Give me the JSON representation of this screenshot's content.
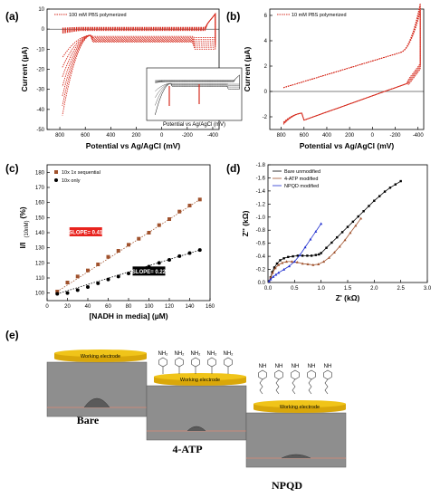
{
  "panel_labels": [
    "(a)",
    "(b)",
    "(c)",
    "(d)",
    "(e)"
  ],
  "chart_data": [
    {
      "id": "a",
      "type": "line",
      "xlabel": "Potential vs Ag/AgCl (mV)",
      "ylabel": "Current (µA)",
      "xlim": [
        900,
        -450
      ],
      "ylim": [
        -50,
        10
      ],
      "x_ticks": [
        800,
        600,
        400,
        200,
        0,
        -200,
        -400
      ],
      "y_ticks": [
        10,
        0,
        -10,
        -20,
        -30,
        -40,
        -50
      ],
      "legend": "100 mM PBS polymerized",
      "color": "#d62d20",
      "inset_xlabel": "Potential vs Ag/AgCl (mV)",
      "cycles": [
        {
          "scale": 1.0
        },
        {
          "scale": 0.88
        },
        {
          "scale": 0.76
        },
        {
          "scale": 0.64
        },
        {
          "scale": 0.52
        },
        {
          "scale": 0.4
        },
        {
          "scale": 0.28
        }
      ]
    },
    {
      "id": "b",
      "type": "line",
      "xlabel": "Potential vs Ag/AgCl (mV)",
      "ylabel": "Current (µA)",
      "xlim": [
        900,
        -450
      ],
      "ylim": [
        -3,
        6.5
      ],
      "x_ticks": [
        800,
        600,
        400,
        200,
        0,
        -200,
        -400
      ],
      "y_ticks": [
        6,
        4,
        2,
        0,
        -2
      ],
      "legend": "10 mM PBS polymerized",
      "color": "#d62d20",
      "cycles": [
        {
          "scale": 1.0
        },
        {
          "scale": 0.95
        },
        {
          "scale": 0.9
        },
        {
          "scale": 0.85
        },
        {
          "scale": 0.8
        }
      ]
    },
    {
      "id": "c",
      "type": "scatter",
      "xlabel": "[NADH in media] (µM)",
      "ylabel": "I/I(10nM) (%)",
      "ylabel_main": "I/I",
      "ylabel_sub": "(10nM)",
      "ylabel_unit": "(%)",
      "xlim": [
        0,
        160
      ],
      "ylim": [
        95,
        185
      ],
      "x_ticks": [
        0,
        20,
        40,
        60,
        80,
        100,
        120,
        140,
        160
      ],
      "y_ticks": [
        100,
        110,
        120,
        130,
        140,
        150,
        160,
        170,
        180
      ],
      "series": [
        {
          "name": "10x 1x sequential",
          "color": "#a0522d",
          "marker": "square",
          "x": [
            10,
            20,
            30,
            40,
            50,
            60,
            70,
            80,
            90,
            100,
            110,
            120,
            130,
            140,
            150
          ],
          "y": [
            101,
            107,
            111,
            115,
            119,
            124,
            128,
            132,
            136,
            140,
            145,
            149,
            154,
            158,
            162
          ]
        },
        {
          "name": "10x only",
          "color": "#000000",
          "marker": "circle",
          "x": [
            10,
            20,
            30,
            40,
            50,
            60,
            70,
            80,
            90,
            100,
            110,
            120,
            130,
            140,
            150
          ],
          "y": [
            99.5,
            100,
            102,
            104,
            106.5,
            109,
            111,
            113,
            115.5,
            117.5,
            120,
            122,
            124.5,
            126.5,
            128.5
          ]
        }
      ],
      "annotations": [
        {
          "text": "SLOPE= 0.41",
          "bg": "#e8231e",
          "x": 38,
          "y": 140
        },
        {
          "text": "SLOPE= 0.22",
          "bg": "#000000",
          "x": 100,
          "y": 114
        }
      ]
    },
    {
      "id": "d",
      "type": "line",
      "xlabel": "Z' (kΩ)",
      "ylabel": "Z'' (kΩ)",
      "xlim": [
        0,
        3
      ],
      "ylim": [
        0,
        -1.8
      ],
      "x_ticks": [
        0.0,
        0.5,
        1.0,
        1.5,
        2.0,
        2.5,
        3.0
      ],
      "y_ticks": [
        -1.8,
        -1.6,
        -1.4,
        -1.2,
        -1.0,
        -0.8,
        -0.6,
        -0.4,
        -0.2,
        0.0
      ],
      "series": [
        {
          "name": "Bare unmodified",
          "color": "#000000",
          "marker": "square",
          "x": [
            0.02,
            0.05,
            0.08,
            0.12,
            0.17,
            0.23,
            0.3,
            0.38,
            0.47,
            0.56,
            0.65,
            0.74,
            0.82,
            0.9,
            0.96,
            1.0,
            1.1,
            1.2,
            1.3,
            1.4,
            1.5,
            1.6,
            1.7,
            1.8,
            1.9,
            2.0,
            2.1,
            2.2,
            2.3,
            2.4,
            2.5
          ],
          "y": [
            -0.02,
            -0.08,
            -0.16,
            -0.23,
            -0.29,
            -0.34,
            -0.37,
            -0.39,
            -0.4,
            -0.41,
            -0.41,
            -0.41,
            -0.41,
            -0.42,
            -0.43,
            -0.45,
            -0.53,
            -0.61,
            -0.69,
            -0.77,
            -0.85,
            -0.93,
            -1.01,
            -1.09,
            -1.17,
            -1.25,
            -1.32,
            -1.39,
            -1.45,
            -1.5,
            -1.55
          ]
        },
        {
          "name": "4-ATP modified",
          "color": "#a0522d",
          "marker": "triangle",
          "x": [
            0.02,
            0.05,
            0.09,
            0.14,
            0.2,
            0.27,
            0.35,
            0.45,
            0.55,
            0.65,
            0.75,
            0.85,
            0.95,
            1.05,
            1.15,
            1.25,
            1.35,
            1.45,
            1.55,
            1.65,
            1.75
          ],
          "y": [
            -0.02,
            -0.08,
            -0.15,
            -0.22,
            -0.27,
            -0.3,
            -0.32,
            -0.32,
            -0.31,
            -0.29,
            -0.28,
            -0.27,
            -0.28,
            -0.32,
            -0.38,
            -0.46,
            -0.55,
            -0.65,
            -0.76,
            -0.87,
            -0.98
          ]
        },
        {
          "name": "NPQD modified",
          "color": "#1f2ecf",
          "marker": "triangle",
          "x": [
            0.02,
            0.05,
            0.1,
            0.15,
            0.2,
            0.3,
            0.4,
            0.5,
            0.6,
            0.7,
            0.8,
            0.9,
            1.0
          ],
          "y": [
            -0.02,
            -0.05,
            -0.09,
            -0.12,
            -0.15,
            -0.2,
            -0.25,
            -0.32,
            -0.42,
            -0.54,
            -0.66,
            -0.78,
            -0.9
          ]
        }
      ]
    }
  ],
  "schematic": {
    "electrode_label": "Working electrode",
    "captions": [
      "Bare",
      "4-ATP",
      "NPQD"
    ],
    "atp_label": "NH₂",
    "npqd_label": "NH"
  },
  "colors": {
    "electrode_fill": "#f0c419",
    "electrode_edge": "#d9a70a",
    "photo_bg": "#8e8e8e",
    "substrate_line": "#c88a7a"
  }
}
